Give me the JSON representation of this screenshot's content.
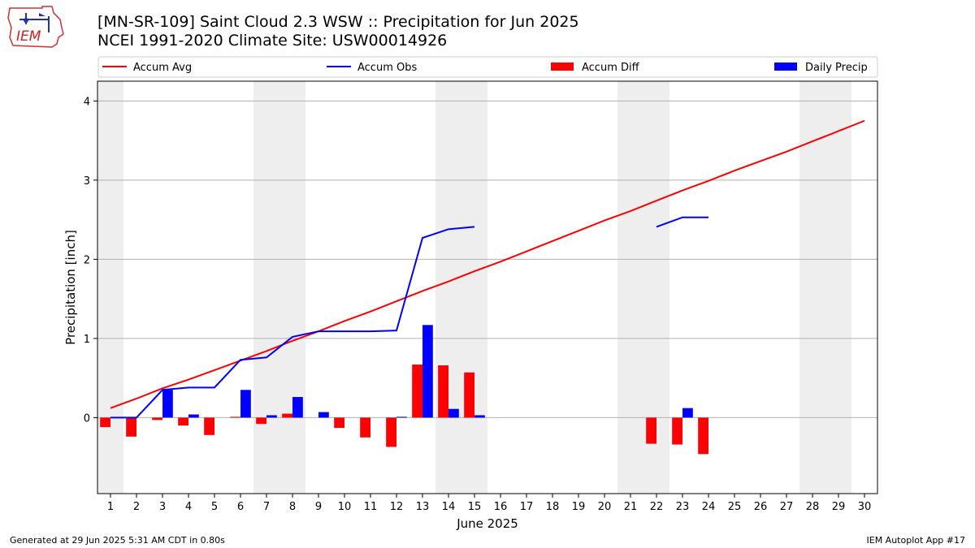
{
  "header": {
    "title_line1": "[MN-SR-109] Saint Cloud 2.3 WSW :: Precipitation for Jun 2025",
    "title_line2": "NCEI 1991-2020 Climate Site: USW00014926"
  },
  "logo": {
    "text": "IEM",
    "colors": {
      "outline": "#cc3333",
      "text": "#cc2222",
      "icon": "#2233aa"
    }
  },
  "footer": {
    "left": "Generated at 29 Jun 2025 5:31 AM CDT in 0.80s",
    "right": "IEM Autoplot App #17"
  },
  "chart_data": {
    "type": "bar",
    "xlabel": "June 2025",
    "ylabel": "Precipitation [inch]",
    "ylim": [
      -0.96,
      4.25
    ],
    "yticks": [
      0,
      1,
      2,
      3,
      4
    ],
    "xlim": [
      0.5,
      30.5
    ],
    "days": [
      1,
      2,
      3,
      4,
      5,
      6,
      7,
      8,
      9,
      10,
      11,
      12,
      13,
      14,
      15,
      16,
      17,
      18,
      19,
      20,
      21,
      22,
      23,
      24,
      25,
      26,
      27,
      28,
      29,
      30
    ],
    "weekend_shading_days": [
      1,
      7,
      8,
      14,
      15,
      21,
      22,
      28,
      29
    ],
    "grid": "horizontal",
    "legend_placement": "top, above plot",
    "series": [
      {
        "name": "Accum Avg",
        "kind": "line",
        "color": "#ff0000",
        "values": [
          0.12,
          0.24,
          0.37,
          0.48,
          0.6,
          0.72,
          0.84,
          0.97,
          1.09,
          1.22,
          1.34,
          1.47,
          1.6,
          1.72,
          1.85,
          1.97,
          2.1,
          2.23,
          2.36,
          2.49,
          2.61,
          2.74,
          2.87,
          2.99,
          3.12,
          3.24,
          3.36,
          3.49,
          3.62,
          3.75
        ]
      },
      {
        "name": "Accum Obs",
        "kind": "line",
        "color": "#0000ff",
        "values": [
          0.0,
          0.0,
          0.35,
          0.38,
          0.38,
          0.73,
          0.76,
          1.02,
          1.09,
          1.09,
          1.09,
          1.1,
          2.27,
          2.38,
          2.41,
          null,
          null,
          null,
          null,
          null,
          null,
          2.41,
          2.53,
          2.53,
          null,
          null,
          null,
          null,
          null,
          null
        ]
      },
      {
        "name": "Accum Diff",
        "kind": "bar",
        "color": "#ff0000",
        "values": [
          -0.12,
          -0.24,
          -0.03,
          -0.1,
          -0.22,
          0.01,
          -0.08,
          0.05,
          0.0,
          -0.13,
          -0.25,
          -0.37,
          0.67,
          0.66,
          0.57,
          null,
          null,
          null,
          null,
          null,
          null,
          -0.33,
          -0.34,
          -0.46,
          null,
          null,
          null,
          null,
          null,
          null
        ]
      },
      {
        "name": "Daily Precip",
        "kind": "bar",
        "color": "#0000ff",
        "values": [
          0.0,
          0.0,
          0.35,
          0.04,
          0.0,
          0.35,
          0.03,
          0.26,
          0.07,
          0.0,
          0.0,
          0.01,
          1.17,
          0.11,
          0.03,
          null,
          null,
          null,
          null,
          null,
          null,
          0.0,
          0.12,
          0.0,
          null,
          null,
          null,
          null,
          null,
          null
        ]
      }
    ]
  }
}
